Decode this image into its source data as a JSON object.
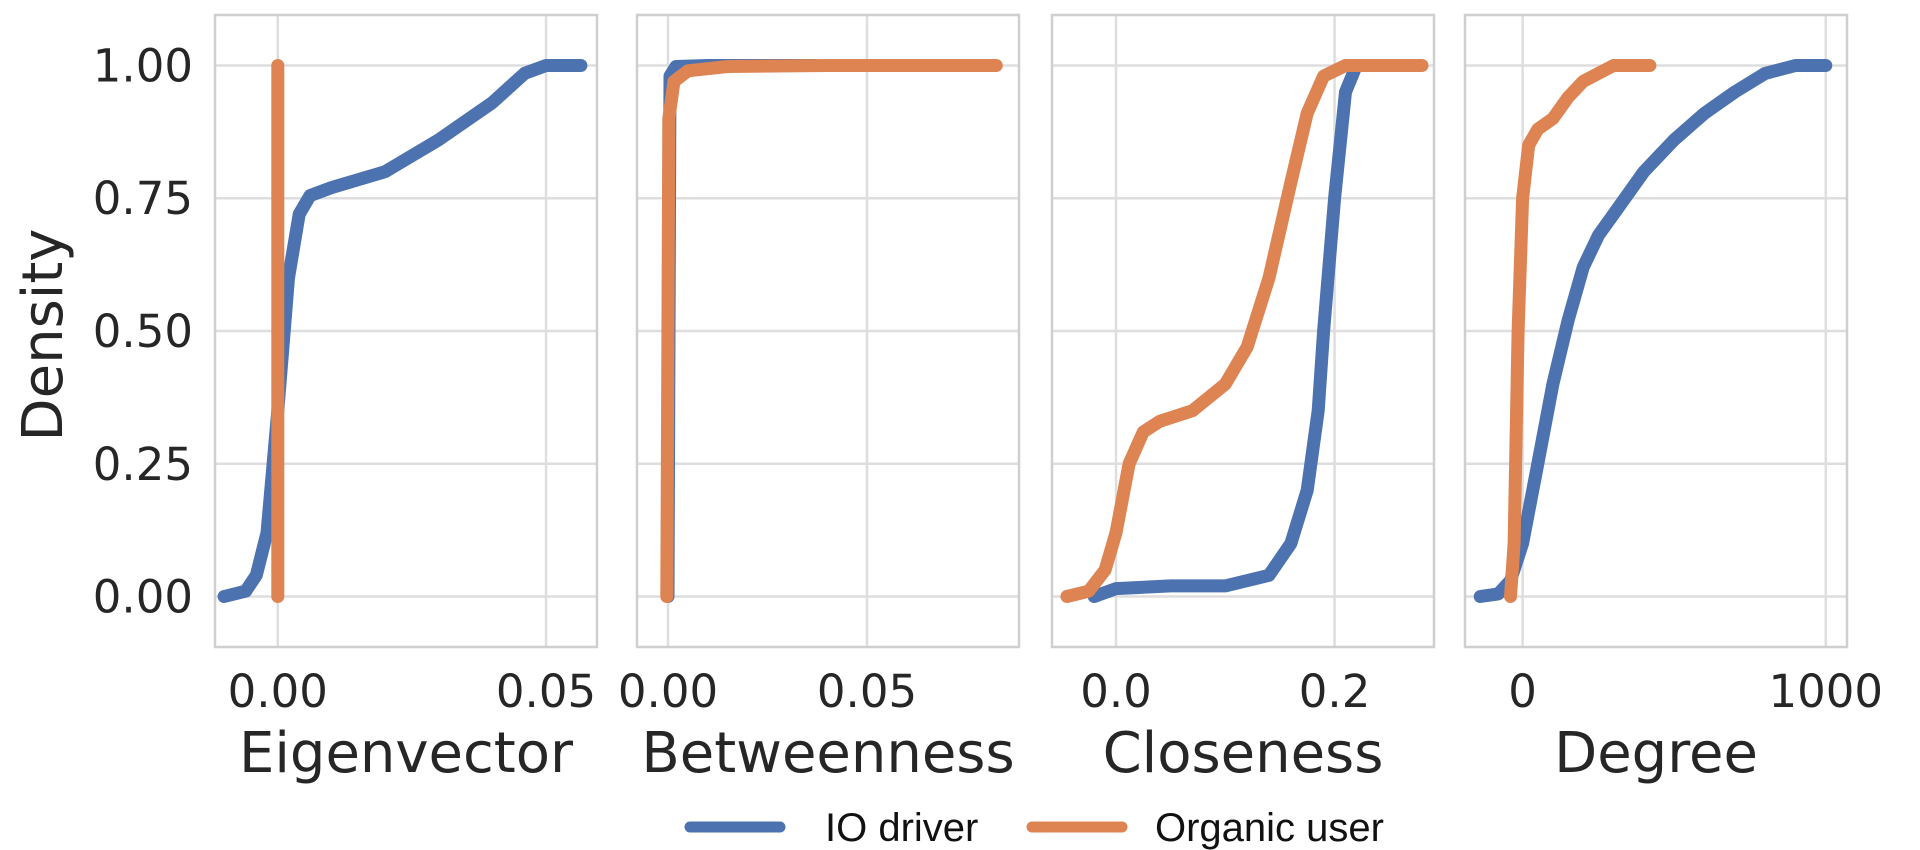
{
  "chart_data": {
    "type": "line",
    "ylabel": "Density",
    "ylim": [
      -0.095,
      1.095
    ],
    "yticks": [
      {
        "v": 0,
        "label": "0.00"
      },
      {
        "v": 0.25,
        "label": "0.25"
      },
      {
        "v": 0.5,
        "label": "0.50"
      },
      {
        "v": 0.75,
        "label": "0.75"
      },
      {
        "v": 1,
        "label": "1.00"
      }
    ],
    "grid": true,
    "legend": {
      "placement": "bottom-center",
      "entries": [
        {
          "name": "IO driver",
          "color": "#4C72B0"
        },
        {
          "name": "Organic user",
          "color": "#DD8452"
        }
      ]
    },
    "panels": [
      {
        "xlabel": "Eigenvector",
        "xlim": [
          -0.0117,
          0.0595
        ],
        "xticks": [
          {
            "v": 0,
            "label": "0.00"
          },
          {
            "v": 0.05,
            "label": "0.05"
          }
        ],
        "series": [
          {
            "name": "IO driver",
            "color": "#4C72B0",
            "points": [
              [
                -0.01,
                0
              ],
              [
                -0.006,
                0.01
              ],
              [
                -0.004,
                0.04
              ],
              [
                -0.002,
                0.12
              ],
              [
                0,
                0.35
              ],
              [
                0.002,
                0.6
              ],
              [
                0.004,
                0.72
              ],
              [
                0.006,
                0.755
              ],
              [
                0.01,
                0.77
              ],
              [
                0.02,
                0.8
              ],
              [
                0.03,
                0.86
              ],
              [
                0.04,
                0.93
              ],
              [
                0.046,
                0.985
              ],
              [
                0.05,
                1
              ],
              [
                0.0565,
                1
              ]
            ]
          },
          {
            "name": "Organic user",
            "color": "#DD8452",
            "points": [
              [
                0,
                0
              ],
              [
                0,
                1
              ]
            ]
          }
        ]
      },
      {
        "xlabel": "Betweenness",
        "xlim": [
          -0.0078,
          0.0882
        ],
        "xticks": [
          {
            "v": 0,
            "label": "0.00"
          },
          {
            "v": 0.05,
            "label": "0.05"
          }
        ],
        "series": [
          {
            "name": "IO driver",
            "color": "#4C72B0",
            "points": [
              [
                0,
                0
              ],
              [
                0.0005,
                0.98
              ],
              [
                0.002,
                0.998
              ],
              [
                0.01,
                1
              ],
              [
                0.037,
                1
              ]
            ]
          },
          {
            "name": "Organic user",
            "color": "#DD8452",
            "points": [
              [
                -0.0003,
                0
              ],
              [
                0.0002,
                0.9
              ],
              [
                0.0015,
                0.97
              ],
              [
                0.005,
                0.99
              ],
              [
                0.015,
                0.998
              ],
              [
                0.04,
                1
              ],
              [
                0.0825,
                1
              ]
            ]
          }
        ]
      },
      {
        "xlabel": "Closeness",
        "xlim": [
          -0.0586,
          0.291
        ],
        "xticks": [
          {
            "v": 0,
            "label": "0.0"
          },
          {
            "v": 0.2,
            "label": "0.2"
          }
        ],
        "series": [
          {
            "name": "IO driver",
            "color": "#4C72B0",
            "points": [
              [
                -0.02,
                0
              ],
              [
                0,
                0.015
              ],
              [
                0.05,
                0.02
              ],
              [
                0.1,
                0.02
              ],
              [
                0.14,
                0.04
              ],
              [
                0.16,
                0.1
              ],
              [
                0.175,
                0.2
              ],
              [
                0.185,
                0.35
              ],
              [
                0.19,
                0.5
              ],
              [
                0.2,
                0.75
              ],
              [
                0.21,
                0.95
              ],
              [
                0.22,
                1
              ],
              [
                0.235,
                1
              ]
            ]
          },
          {
            "name": "Organic user",
            "color": "#DD8452",
            "points": [
              [
                -0.045,
                0
              ],
              [
                -0.025,
                0.01
              ],
              [
                -0.01,
                0.05
              ],
              [
                0,
                0.12
              ],
              [
                0.012,
                0.25
              ],
              [
                0.025,
                0.31
              ],
              [
                0.04,
                0.33
              ],
              [
                0.07,
                0.35
              ],
              [
                0.1,
                0.4
              ],
              [
                0.12,
                0.47
              ],
              [
                0.14,
                0.6
              ],
              [
                0.16,
                0.78
              ],
              [
                0.175,
                0.91
              ],
              [
                0.19,
                0.98
              ],
              [
                0.21,
                1
              ],
              [
                0.28,
                1
              ]
            ]
          }
        ]
      },
      {
        "xlabel": "Degree",
        "xlim": [
          -190,
          1070
        ],
        "xticks": [
          {
            "v": 0,
            "label": "0"
          },
          {
            "v": 1000,
            "label": "1000"
          }
        ],
        "series": [
          {
            "name": "IO driver",
            "color": "#4C72B0",
            "points": [
              [
                -140,
                0
              ],
              [
                -80,
                0.005
              ],
              [
                -40,
                0.03
              ],
              [
                0,
                0.1
              ],
              [
                50,
                0.25
              ],
              [
                100,
                0.4
              ],
              [
                150,
                0.52
              ],
              [
                200,
                0.62
              ],
              [
                250,
                0.68
              ],
              [
                300,
                0.72
              ],
              [
                400,
                0.8
              ],
              [
                500,
                0.86
              ],
              [
                600,
                0.91
              ],
              [
                700,
                0.95
              ],
              [
                800,
                0.985
              ],
              [
                900,
                1
              ],
              [
                1000,
                1
              ]
            ]
          },
          {
            "name": "Organic user",
            "color": "#DD8452",
            "points": [
              [
                -40,
                0
              ],
              [
                -28,
                0.1
              ],
              [
                -15,
                0.5
              ],
              [
                0,
                0.75
              ],
              [
                20,
                0.85
              ],
              [
                50,
                0.88
              ],
              [
                100,
                0.9
              ],
              [
                150,
                0.94
              ],
              [
                200,
                0.97
              ],
              [
                250,
                0.985
              ],
              [
                300,
                1
              ],
              [
                420,
                1
              ]
            ]
          }
        ]
      }
    ]
  }
}
